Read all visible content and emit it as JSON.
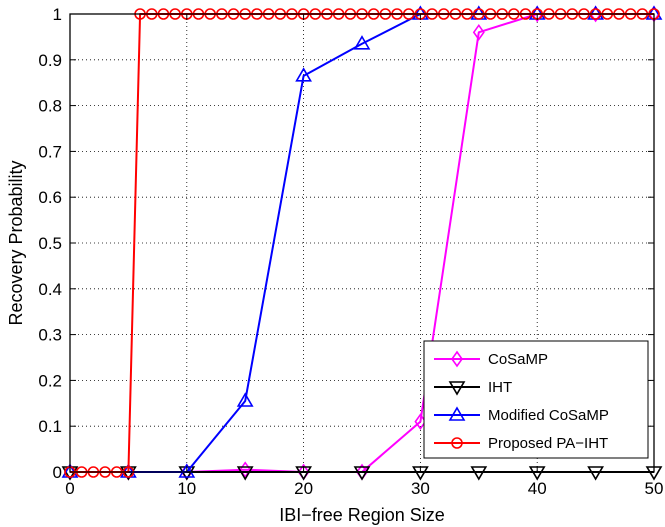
{
  "chart_data": {
    "type": "line",
    "title": "",
    "xlabel": "IBI−free Region Size",
    "ylabel": "Recovery Probability",
    "xlim": [
      0,
      50
    ],
    "ylim": [
      0,
      1
    ],
    "grid": true,
    "legend_position": "bottom-right",
    "x_ticks": [
      "0",
      "10",
      "20",
      "30",
      "40",
      "50"
    ],
    "y_ticks": [
      "0",
      "0.1",
      "0.2",
      "0.3",
      "0.4",
      "0.5",
      "0.6",
      "0.7",
      "0.8",
      "0.9",
      "1"
    ],
    "series": [
      {
        "name": "CoSaMP",
        "color": "#ff00ff",
        "marker": "diamond",
        "x": [
          0,
          5,
          10,
          15,
          20,
          25,
          30,
          35,
          40,
          45,
          50
        ],
        "y": [
          0,
          0,
          0,
          0.005,
          0,
          0,
          0.11,
          0.96,
          1,
          1,
          1
        ]
      },
      {
        "name": "IHT",
        "color": "#000000",
        "marker": "triangle-down",
        "x": [
          0,
          5,
          10,
          15,
          20,
          25,
          30,
          35,
          40,
          45,
          50
        ],
        "y": [
          0,
          0,
          0,
          0,
          0,
          0,
          0,
          0,
          0,
          0,
          0
        ]
      },
      {
        "name": "Modified CoSaMP",
        "color": "#0000ff",
        "marker": "triangle-up",
        "x": [
          0,
          5,
          10,
          15,
          20,
          25,
          30,
          35,
          40,
          45,
          50
        ],
        "y": [
          0,
          0,
          0,
          0.155,
          0.865,
          0.935,
          1,
          1,
          1,
          1,
          1
        ]
      },
      {
        "name": "Proposed PA−IHT",
        "color": "#ff0000",
        "marker": "circle",
        "x": [
          0,
          1,
          2,
          3,
          4,
          5,
          6,
          7,
          8,
          9,
          10,
          11,
          12,
          13,
          14,
          15,
          16,
          17,
          18,
          19,
          20,
          21,
          22,
          23,
          24,
          25,
          26,
          27,
          28,
          29,
          30,
          31,
          32,
          33,
          34,
          35,
          36,
          37,
          38,
          39,
          40,
          41,
          42,
          43,
          44,
          45,
          46,
          47,
          48,
          49,
          50
        ],
        "y": [
          0,
          0,
          0,
          0,
          0,
          0,
          1,
          1,
          1,
          1,
          1,
          1,
          1,
          1,
          1,
          1,
          1,
          1,
          1,
          1,
          1,
          1,
          1,
          1,
          1,
          1,
          1,
          1,
          1,
          1,
          1,
          1,
          1,
          1,
          1,
          1,
          1,
          1,
          1,
          1,
          1,
          1,
          1,
          1,
          1,
          1,
          1,
          1,
          1,
          1,
          1
        ]
      }
    ]
  }
}
